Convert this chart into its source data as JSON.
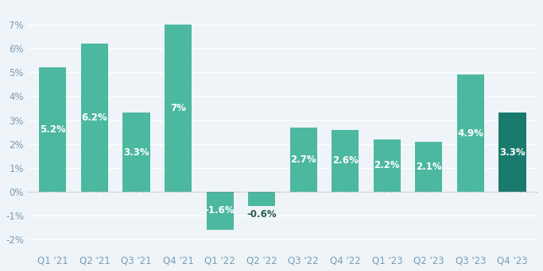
{
  "categories": [
    "Q1 '21",
    "Q2 '21",
    "Q3 '21",
    "Q4 '21",
    "Q1 '22",
    "Q2 '22",
    "Q3 '22",
    "Q4 '22",
    "Q1 '23",
    "Q2 '23",
    "Q3 '23",
    "Q4 '23"
  ],
  "values": [
    5.2,
    6.2,
    3.3,
    7.0,
    -1.6,
    -0.6,
    2.7,
    2.6,
    2.2,
    2.1,
    4.9,
    3.3
  ],
  "labels": [
    "5.2%",
    "6.2%",
    "3.3%",
    "7%",
    "-1.6%",
    "-0.6%",
    "2.7%",
    "2.6%",
    "2.2%",
    "2.1%",
    "4.9%",
    "3.3%"
  ],
  "bar_colors": [
    "#4db8a0",
    "#4db8a0",
    "#4db8a0",
    "#4db8a0",
    "#4db8a0",
    "#4db8a0",
    "#4db8a0",
    "#4db8a0",
    "#4db8a0",
    "#4db8a0",
    "#4db8a0",
    "#1a7a6e"
  ],
  "ylim": [
    -2.5,
    7.8
  ],
  "yticks": [
    -2,
    -1,
    0,
    1,
    2,
    3,
    4,
    5,
    6,
    7
  ],
  "ytick_labels": [
    "-2%",
    "-1%",
    "0%",
    "1%",
    "2%",
    "3%",
    "4%",
    "5%",
    "6%",
    "7%"
  ],
  "background_color": "#eef4f7",
  "grid_color": "#ffffff",
  "label_fontsize": 8.5,
  "tick_fontsize": 8.5,
  "tick_color": "#7a9bb5"
}
